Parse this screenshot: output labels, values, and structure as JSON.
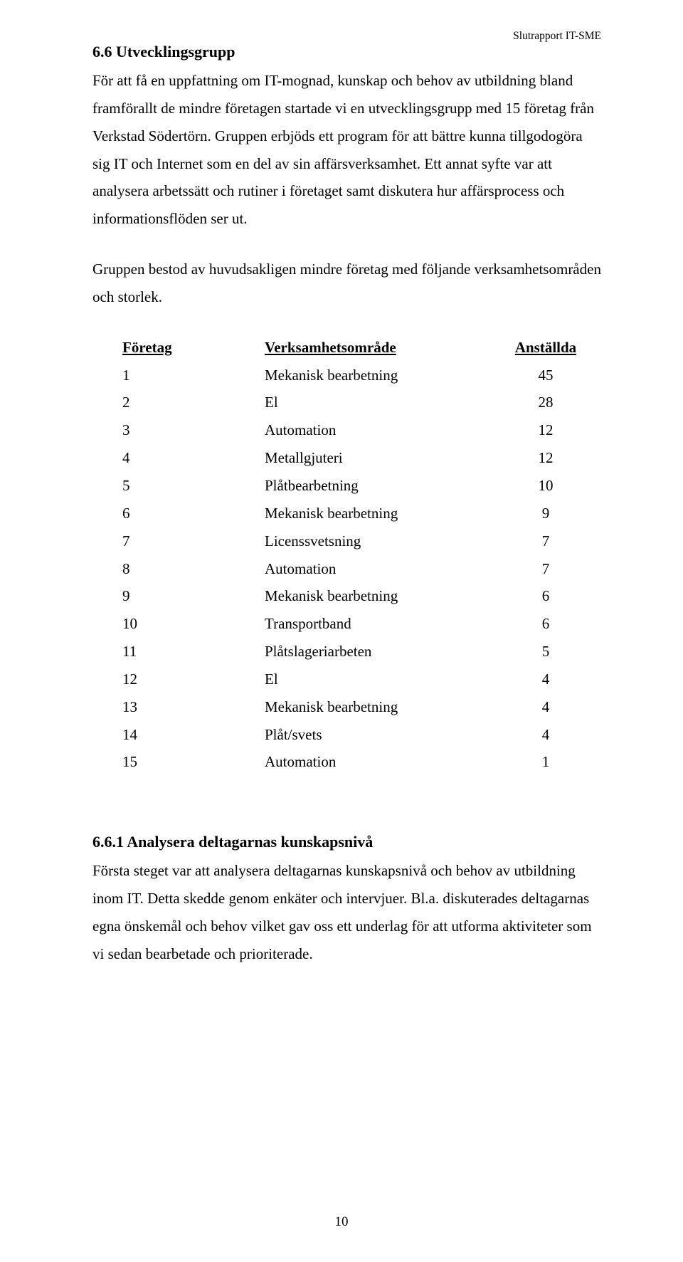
{
  "header": {
    "running": "Slutrapport IT-SME"
  },
  "section1": {
    "heading": "6.6 Utvecklingsgrupp",
    "p1": "För att få en uppfattning om IT-mognad, kunskap och behov av utbildning bland framförallt de mindre företagen startade vi en utvecklingsgrupp med 15 företag från Verkstad Södertörn. Gruppen erbjöds ett program för att bättre kunna tillgodogöra sig IT och Internet som en del av sin affärsverksamhet. Ett annat syfte var att analysera arbetssätt och rutiner i företaget samt diskutera hur affärsprocess och informationsflöden ser ut.",
    "p2": "Gruppen bestod av huvudsakligen mindre företag med följande verksamhetsområden och storlek."
  },
  "table": {
    "headers": {
      "company": "Företag",
      "area": "Verksamhetsområde",
      "employees": "Anställda"
    },
    "rows": [
      {
        "n": "1",
        "area": "Mekanisk bearbetning",
        "emp": "45"
      },
      {
        "n": "2",
        "area": "El",
        "emp": "28"
      },
      {
        "n": "3",
        "area": "Automation",
        "emp": "12"
      },
      {
        "n": "4",
        "area": "Metallgjuteri",
        "emp": "12"
      },
      {
        "n": "5",
        "area": "Plåtbearbetning",
        "emp": "10"
      },
      {
        "n": "6",
        "area": "Mekanisk bearbetning",
        "emp": "9"
      },
      {
        "n": "7",
        "area": "Licenssvetsning",
        "emp": "7"
      },
      {
        "n": "8",
        "area": "Automation",
        "emp": "7"
      },
      {
        "n": "9",
        "area": "Mekanisk bearbetning",
        "emp": "6"
      },
      {
        "n": "10",
        "area": "Transportband",
        "emp": "6"
      },
      {
        "n": "11",
        "area": "Plåtslageriarbeten",
        "emp": "5"
      },
      {
        "n": "12",
        "area": "El",
        "emp": "4"
      },
      {
        "n": "13",
        "area": "Mekanisk bearbetning",
        "emp": "4"
      },
      {
        "n": "14",
        "area": "Plåt/svets",
        "emp": "4"
      },
      {
        "n": "15",
        "area": "Automation",
        "emp": "1"
      }
    ]
  },
  "section2": {
    "heading": "6.6.1 Analysera deltagarnas kunskapsnivå",
    "p1": "Första steget var att analysera deltagarnas kunskapsnivå och behov av utbildning inom IT. Detta skedde genom enkäter och intervjuer. Bl.a. diskuterades deltagarnas egna önskemål och behov vilket gav oss ett underlag för att utforma aktiviteter som vi sedan bearbetade och prioriterade."
  },
  "footer": {
    "page_number": "10"
  }
}
